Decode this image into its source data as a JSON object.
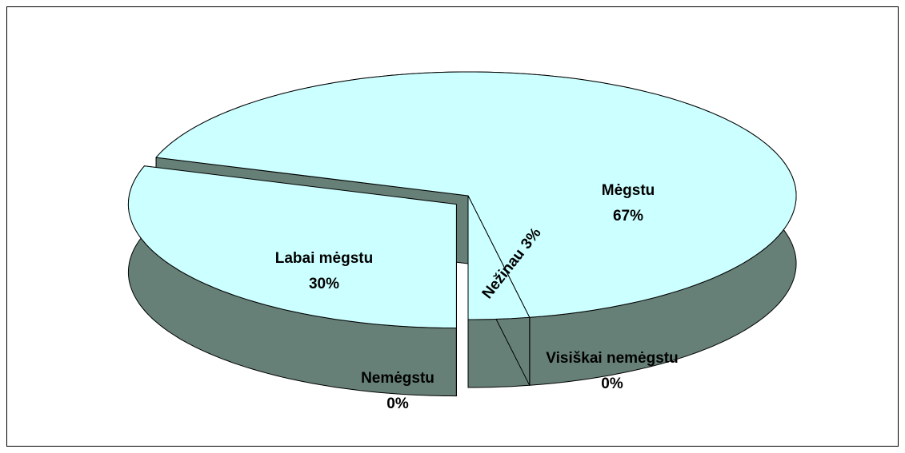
{
  "chart_data": {
    "type": "pie",
    "categories": [
      "Labai mėgstu",
      "Mėgstu",
      "Nežinau",
      "Nemėgstu",
      "Visiškai nemėgstu"
    ],
    "values": [
      30,
      67,
      3,
      0,
      0
    ],
    "value_labels": [
      "30%",
      "67%",
      "3%",
      "0%",
      "0%"
    ],
    "color": "#ccffff",
    "side_color": "#668078"
  }
}
